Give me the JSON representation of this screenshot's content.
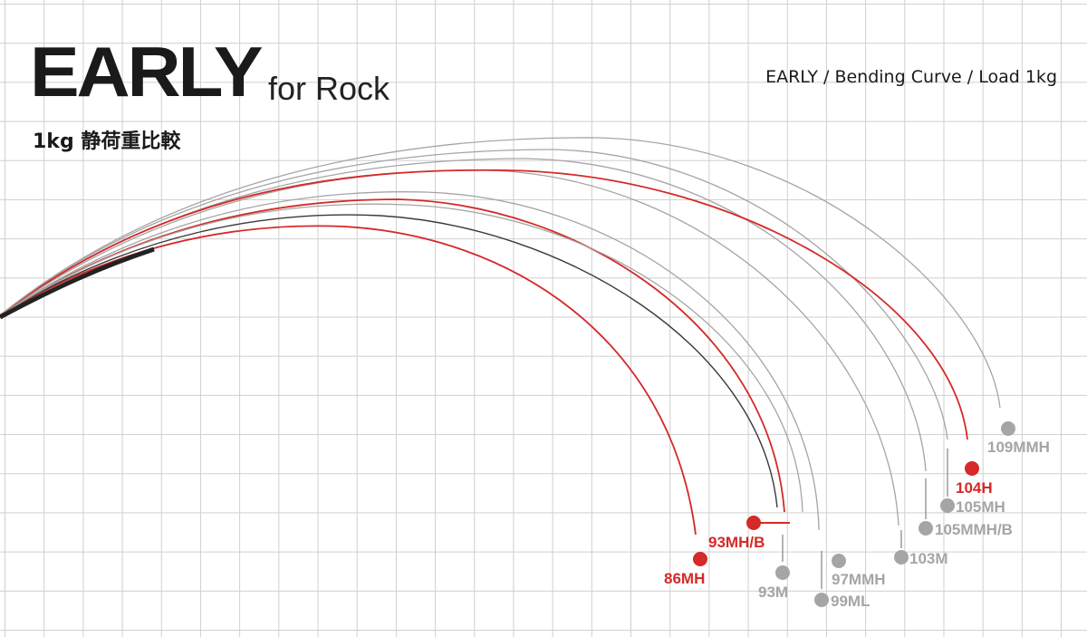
{
  "header": {
    "title": "EARLY",
    "subtitle": "for Rock",
    "caption": "1kg 静荷重比較",
    "right_label": "EARLY / Bending Curve / Load 1kg"
  },
  "colors": {
    "red": "#d42a28",
    "gray": "#a5a5a5",
    "dark": "#3a3a3a",
    "grid": "#cfcfcf"
  },
  "rods": [
    {
      "model": "86MH",
      "color": "red"
    },
    {
      "model": "93MH/B",
      "color": "red"
    },
    {
      "model": "93M",
      "color": "gray"
    },
    {
      "model": "97MMH",
      "color": "gray"
    },
    {
      "model": "99ML",
      "color": "gray"
    },
    {
      "model": "103M",
      "color": "gray"
    },
    {
      "model": "105MMH/B",
      "color": "gray"
    },
    {
      "model": "105MH",
      "color": "gray"
    },
    {
      "model": "104H",
      "color": "red"
    },
    {
      "model": "109MMH",
      "color": "gray"
    }
  ]
}
